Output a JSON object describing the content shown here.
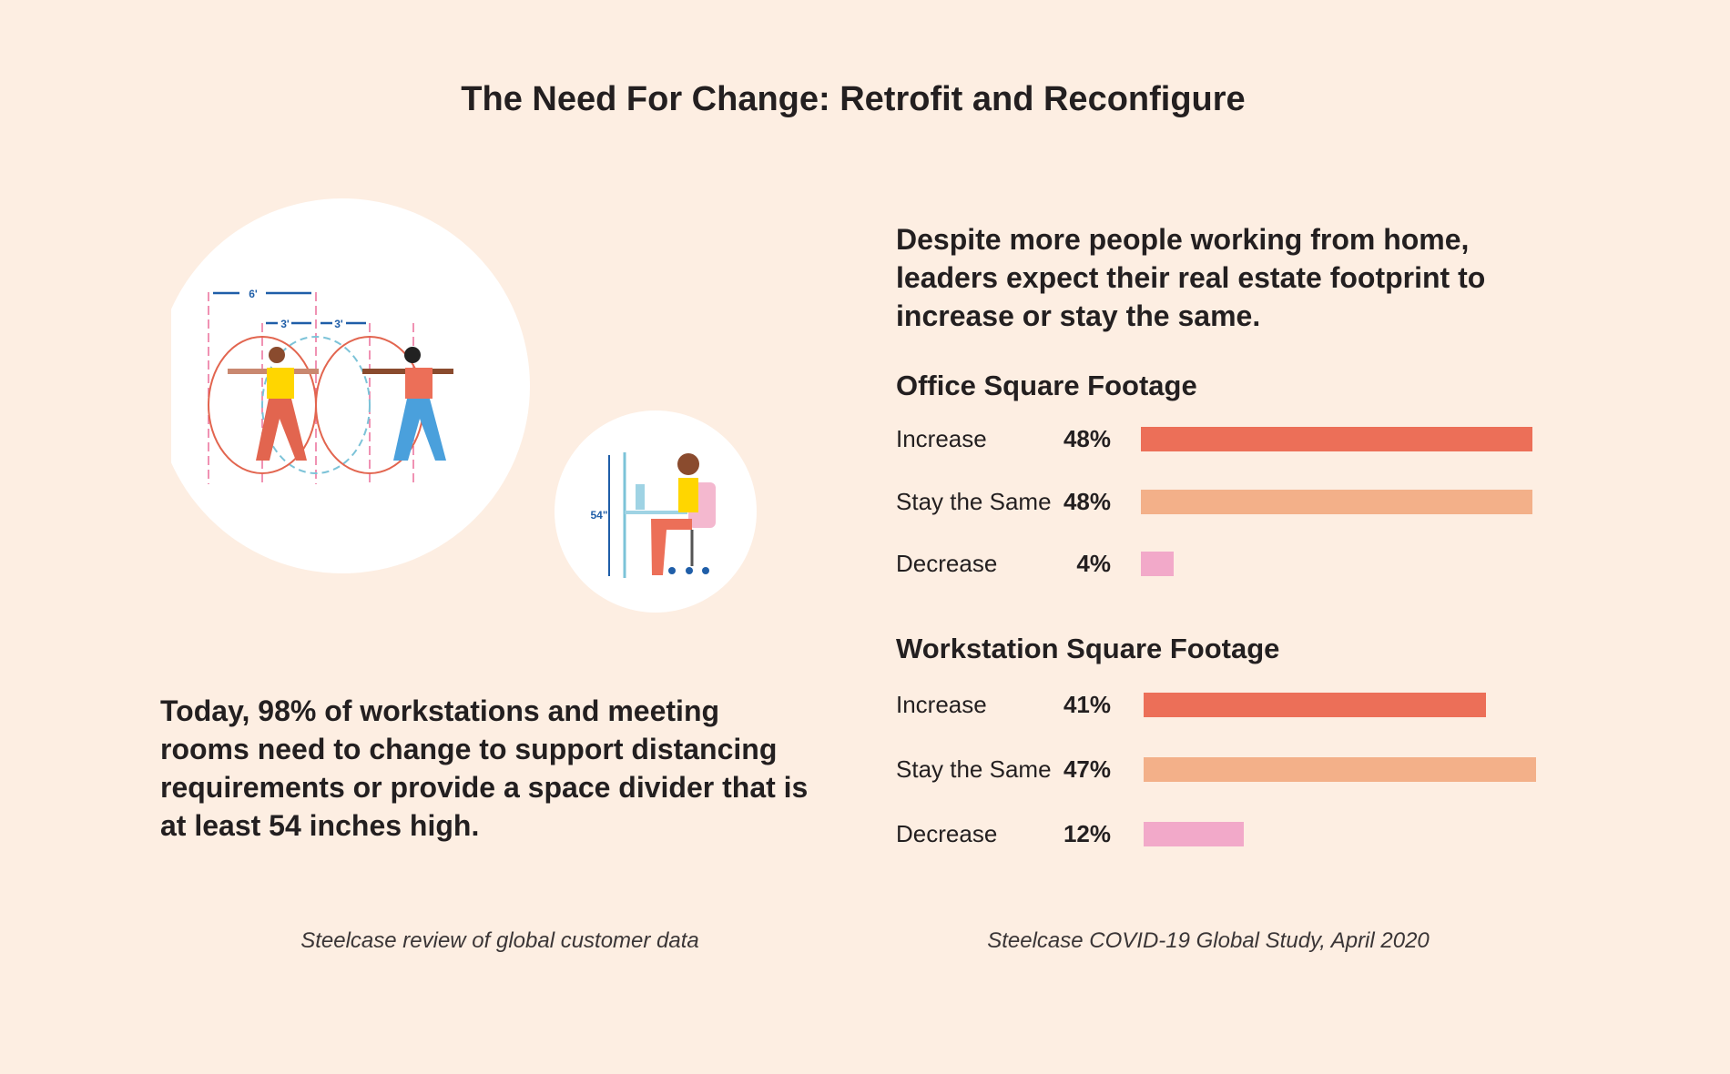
{
  "title": "The Need For Change: Retrofit and Reconfigure",
  "illustration": {
    "dim_6ft": "6'",
    "dim_3ft_a": "3'",
    "dim_3ft_b": "3'",
    "dim_54in": "54\""
  },
  "left": {
    "paragraph": "Today, 98% of workstations and meeting rooms need to change to support distancing requirements or provide a space divider that is at least 54 inches high.",
    "source": "Steelcase review of global customer data"
  },
  "right": {
    "lede": "Despite more people working from home, leaders expect their real estate footprint to increase or stay the same.",
    "source": "Steelcase COVID-19 Global Study, April 2020"
  },
  "colors": {
    "increase": "#ec6f58",
    "stay": "#f3b089",
    "decrease": "#f2a9c9"
  },
  "chart_data": [
    {
      "type": "bar",
      "orientation": "horizontal",
      "title": "Office Square Footage",
      "categories": [
        "Increase",
        "Stay the Same",
        "Decrease"
      ],
      "values": [
        48,
        48,
        4
      ],
      "labels": [
        "48%",
        "48%",
        "4%"
      ],
      "unit": "%"
    },
    {
      "type": "bar",
      "orientation": "horizontal",
      "title": "Workstation Square Footage",
      "categories": [
        "Increase",
        "Stay the Same",
        "Decrease"
      ],
      "values": [
        41,
        47,
        12
      ],
      "labels": [
        "41%",
        "47%",
        "12%"
      ],
      "unit": "%"
    }
  ]
}
